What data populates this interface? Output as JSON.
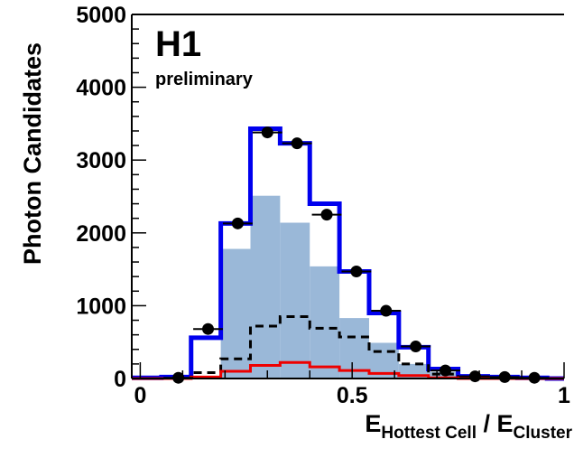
{
  "chart_data": {
    "type": "histogram",
    "title": "H1",
    "subtitle": "preliminary",
    "ylabel": "Photon Candidates",
    "xlabel": {
      "main1": "E",
      "sub1": "Hottest Cell",
      "sep": " / ",
      "main2": "E",
      "sub2": "Cluster"
    },
    "xlim": [
      -0.02,
      1.0
    ],
    "ylim": [
      0,
      5000
    ],
    "x_ticks": [
      {
        "value": 0,
        "label": "0"
      },
      {
        "value": 0.5,
        "label": "0.5"
      },
      {
        "value": 1,
        "label": "1"
      }
    ],
    "y_ticks": [
      {
        "value": 0,
        "label": "0"
      },
      {
        "value": 1000,
        "label": "1000"
      },
      {
        "value": 2000,
        "label": "2000"
      },
      {
        "value": 3000,
        "label": "3000"
      },
      {
        "value": 4000,
        "label": "4000"
      },
      {
        "value": 5000,
        "label": "5000"
      }
    ],
    "bin_edges": [
      -0.02,
      0.05,
      0.12,
      0.19,
      0.26,
      0.33,
      0.4,
      0.47,
      0.54,
      0.61,
      0.68,
      0.75,
      0.82,
      0.89,
      0.96,
      1.0
    ],
    "series": [
      {
        "kind": "filled",
        "color": "#9ab8d8",
        "values": [
          0,
          0,
          20,
          1780,
          2510,
          2140,
          1540,
          830,
          490,
          200,
          90,
          20,
          0,
          0,
          0
        ]
      },
      {
        "kind": "step",
        "color": "#0000ee",
        "width": 5,
        "values": [
          10,
          20,
          560,
          2130,
          3430,
          3230,
          2400,
          1470,
          900,
          430,
          130,
          30,
          20,
          10,
          0
        ]
      },
      {
        "kind": "step",
        "color": "#000000",
        "width": 3,
        "dash": "9,6",
        "values": [
          0,
          0,
          80,
          270,
          720,
          850,
          690,
          570,
          370,
          200,
          60,
          20,
          0,
          0,
          0
        ]
      },
      {
        "kind": "step",
        "color": "#ee0000",
        "width": 3,
        "values": [
          0,
          0,
          20,
          100,
          180,
          220,
          160,
          110,
          70,
          40,
          10,
          0,
          0,
          0,
          0
        ]
      },
      {
        "kind": "points",
        "color": "#000000",
        "x": [
          0.09,
          0.16,
          0.23,
          0.3,
          0.37,
          0.44,
          0.51,
          0.58,
          0.65,
          0.72,
          0.79,
          0.86,
          0.93
        ],
        "values": [
          10,
          680,
          2130,
          3380,
          3230,
          2250,
          1470,
          930,
          440,
          110,
          30,
          20,
          10
        ],
        "xerr": 0.035
      }
    ]
  }
}
